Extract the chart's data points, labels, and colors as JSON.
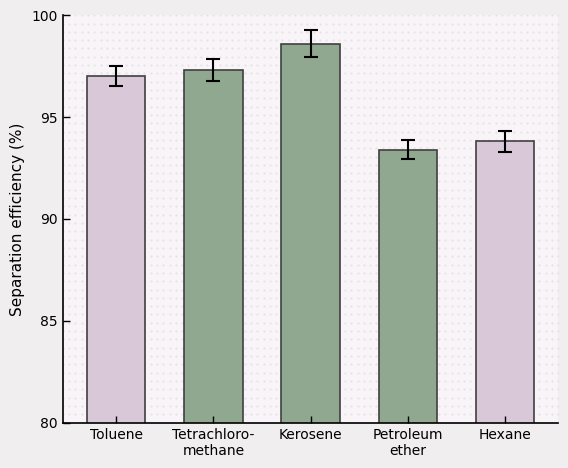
{
  "categories": [
    "Toluene",
    "Tetrachloro-\nmethane",
    "Kerosene",
    "Petroleum\nether",
    "Hexane"
  ],
  "values": [
    97.0,
    97.3,
    98.6,
    93.4,
    93.8
  ],
  "errors": [
    0.5,
    0.55,
    0.65,
    0.45,
    0.5
  ],
  "bar_colors": [
    "#d8c8d8",
    "#8fa88f",
    "#8fa88f",
    "#8fa88f",
    "#d8c8d8"
  ],
  "bar_edgecolors": [
    "#404040",
    "#404040",
    "#404040",
    "#404040",
    "#404040"
  ],
  "ylabel": "Separation efficiency (%)",
  "ylim": [
    80,
    100
  ],
  "yticks": [
    80,
    85,
    90,
    95,
    100
  ],
  "plot_bg_color": "#f8f8f8",
  "figure_facecolor": "#f0eeee",
  "tick_direction": "in",
  "bar_width": 0.6,
  "xlabel_fontsize": 10,
  "ylabel_fontsize": 11
}
